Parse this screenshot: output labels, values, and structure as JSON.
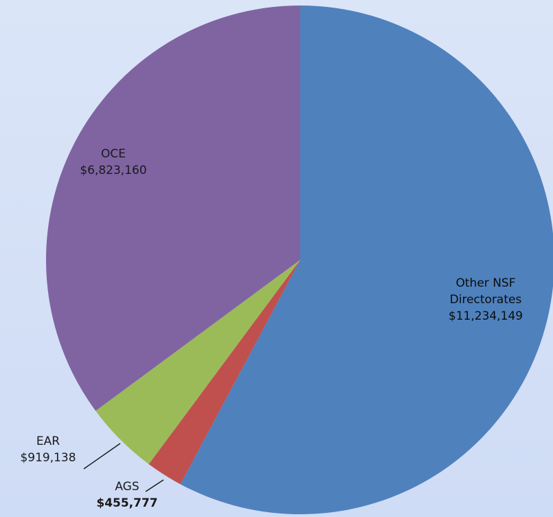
{
  "chart_data": {
    "type": "pie",
    "categories": [
      "Other NSF Directorates",
      "AGS",
      "EAR",
      "OCE"
    ],
    "values": [
      11234149,
      455777,
      919138,
      6823160
    ],
    "value_labels": [
      "$11,234,149",
      "$455,777",
      "$919,138",
      "$6,823,160"
    ],
    "colors": [
      "#4f81bd",
      "#c0504d",
      "#9bbb59",
      "#8064a2"
    ]
  }
}
